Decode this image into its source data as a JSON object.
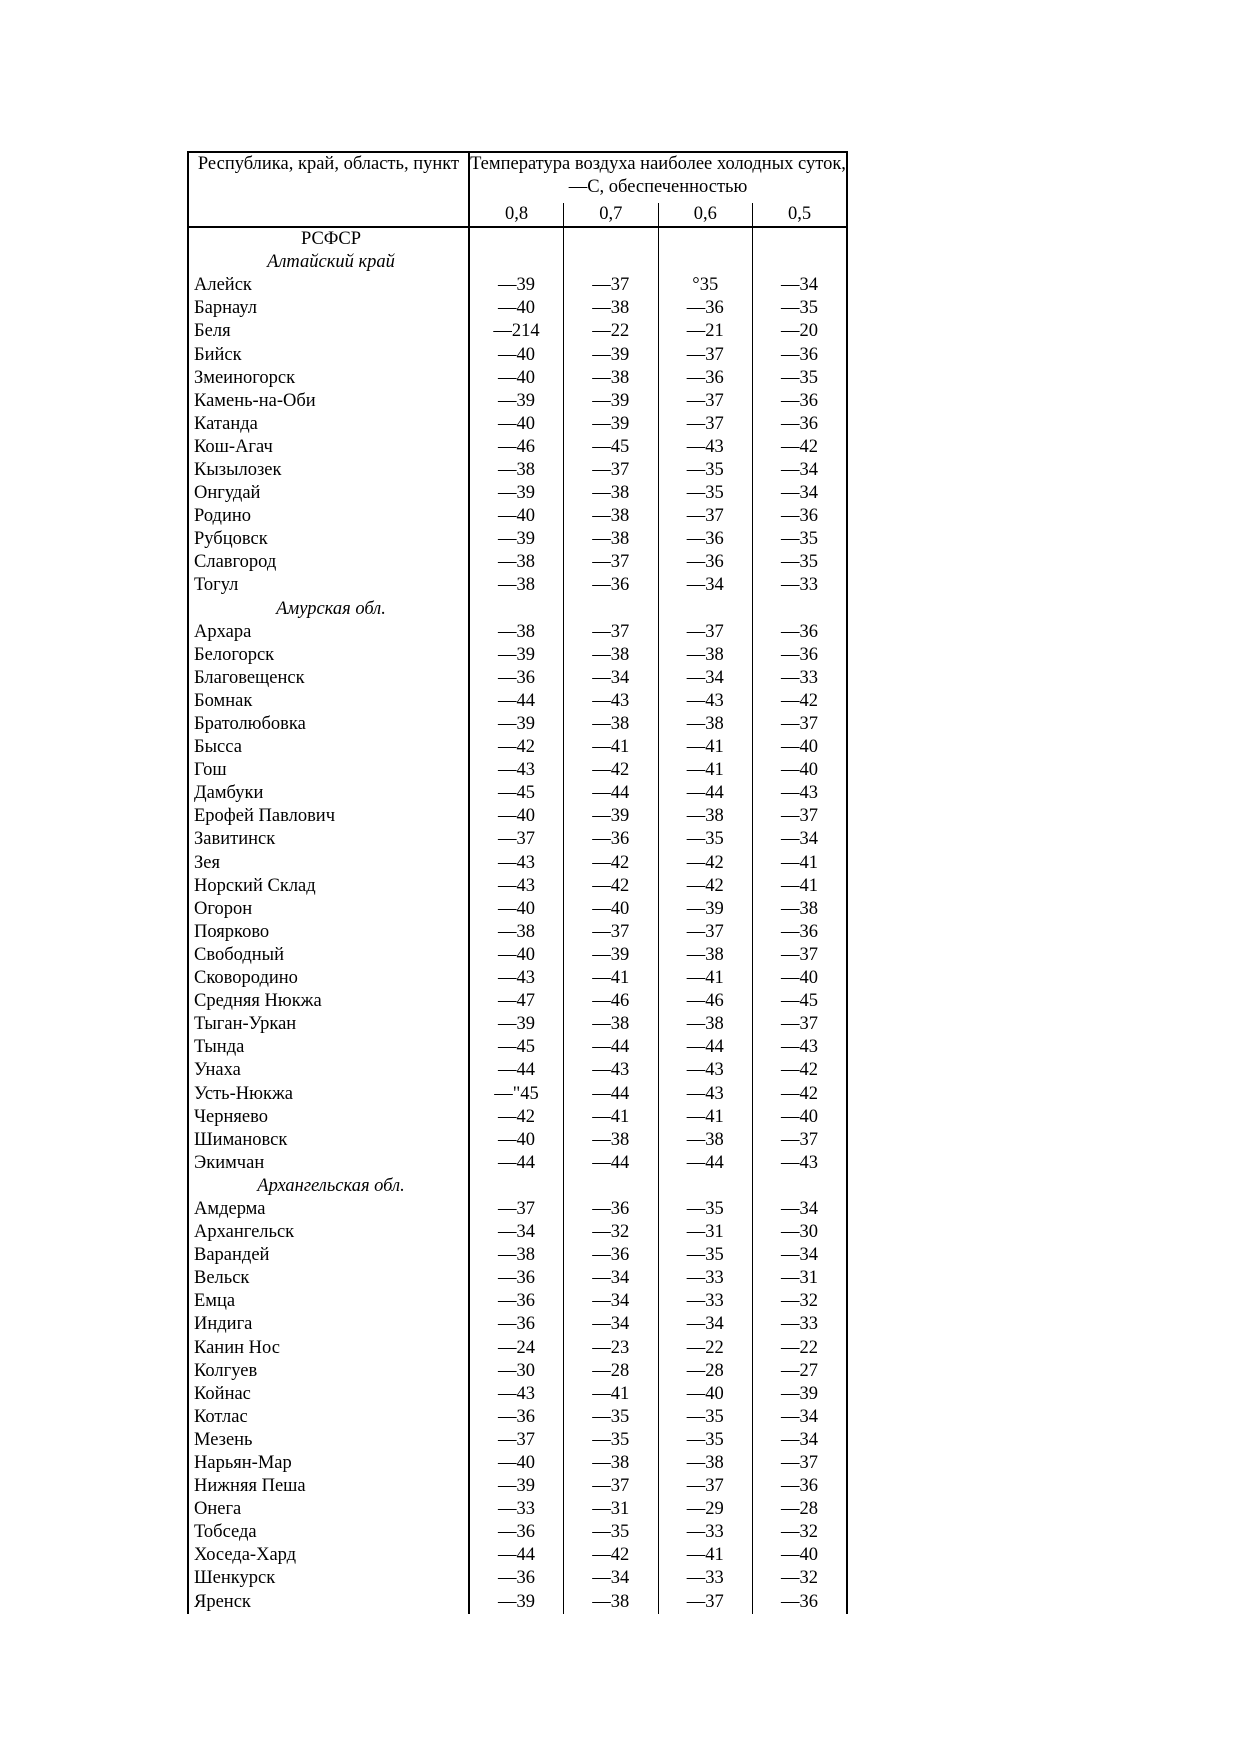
{
  "header": {
    "name_col": "Республика, край, область, пункт",
    "temp_col": "Температура воздуха наиболее холодных суток, —С, обеспеченностью",
    "probabilities": [
      "0,8",
      "0,7",
      "0,6",
      "0,5"
    ]
  },
  "country": "РСФСР",
  "groups": [
    {
      "title": "Алтайский край",
      "rows": [
        {
          "name": "Алейск",
          "v": [
            "—39",
            "—37",
            "°35",
            "—34"
          ]
        },
        {
          "name": "Барнаул",
          "v": [
            "—40",
            "—38",
            "—36",
            "—35"
          ]
        },
        {
          "name": "Беля",
          "v": [
            "—214",
            "—22",
            "—21",
            "—20"
          ]
        },
        {
          "name": "Бийск",
          "v": [
            "—40",
            "—39",
            "—37",
            "—36"
          ]
        },
        {
          "name": "Змеиногорск",
          "v": [
            "—40",
            "—38",
            "—36",
            "—35"
          ]
        },
        {
          "name": "Камень-на-Оби",
          "v": [
            "—39",
            "—39",
            "—37",
            "—36"
          ]
        },
        {
          "name": "Катанда",
          "v": [
            "—40",
            "—39",
            "—37",
            "—36"
          ]
        },
        {
          "name": "Кош-Агач",
          "v": [
            "—46",
            "—45",
            "—43",
            "—42"
          ]
        },
        {
          "name": "Кызылозек",
          "v": [
            "—38",
            "—37",
            "—35",
            "—34"
          ]
        },
        {
          "name": "Онгудай",
          "v": [
            "—39",
            "—38",
            "—35",
            "—34"
          ]
        },
        {
          "name": "Родино",
          "v": [
            "—40",
            "—38",
            "—37",
            "—36"
          ]
        },
        {
          "name": "Рубцовск",
          "v": [
            "—39",
            "—38",
            "—36",
            "—35"
          ]
        },
        {
          "name": "Славгород",
          "v": [
            "—38",
            "—37",
            "—36",
            "—35"
          ]
        },
        {
          "name": "Тогул",
          "v": [
            "—38",
            "—36",
            "—34",
            "—33"
          ]
        }
      ]
    },
    {
      "title": "Амурская обл.",
      "rows": [
        {
          "name": "Архара",
          "v": [
            "—38",
            "—37",
            "—37",
            "—36"
          ]
        },
        {
          "name": "Белогорск",
          "v": [
            "—39",
            "—38",
            "—38",
            "—36"
          ]
        },
        {
          "name": "Благовещенск",
          "v": [
            "—36",
            "—34",
            "—34",
            "—33"
          ]
        },
        {
          "name": "Бомнак",
          "v": [
            "—44",
            "—43",
            "—43",
            "—42"
          ]
        },
        {
          "name": "Братолюбовка",
          "v": [
            "—39",
            "—38",
            "—38",
            "—37"
          ]
        },
        {
          "name": "Бысса",
          "v": [
            "—42",
            "—41",
            "—41",
            "—40"
          ]
        },
        {
          "name": "Гош",
          "v": [
            "—43",
            "—42",
            "—41",
            "—40"
          ]
        },
        {
          "name": "Дамбуки",
          "v": [
            "—45",
            "—44",
            "—44",
            "—43"
          ]
        },
        {
          "name": "Ерофей Павлович",
          "v": [
            "—40",
            "—39",
            "—38",
            "—37"
          ]
        },
        {
          "name": "Завитинск",
          "v": [
            "—37",
            "—36",
            "—35",
            "—34"
          ]
        },
        {
          "name": "Зея",
          "v": [
            "—43",
            "—42",
            "—42",
            "—41"
          ]
        },
        {
          "name": "Норский Склад",
          "v": [
            "—43",
            "—42",
            "—42",
            "—41"
          ]
        },
        {
          "name": "Огорон",
          "v": [
            "—40",
            "—40",
            "—39",
            "—38"
          ]
        },
        {
          "name": "Поярково",
          "v": [
            "—38",
            "—37",
            "—37",
            "—36"
          ]
        },
        {
          "name": "Свободный",
          "v": [
            "—40",
            "—39",
            "—38",
            "—37"
          ]
        },
        {
          "name": "Сковородино",
          "v": [
            "—43",
            "—41",
            "—41",
            "—40"
          ]
        },
        {
          "name": "Средняя Нюкжа",
          "v": [
            "—47",
            "—46",
            "—46",
            "—45"
          ]
        },
        {
          "name": "Тыган-Уркан",
          "v": [
            "—39",
            "—38",
            "—38",
            "—37"
          ]
        },
        {
          "name": "Тында",
          "v": [
            "—45",
            "—44",
            "—44",
            "—43"
          ]
        },
        {
          "name": "Унаха",
          "v": [
            "—44",
            "—43",
            "—43",
            "—42"
          ]
        },
        {
          "name": "Усть-Нюкжа",
          "v": [
            "—\"45",
            "—44",
            "—43",
            "—42"
          ]
        },
        {
          "name": "Черняево",
          "v": [
            "—42",
            "—41",
            "—41",
            "—40"
          ]
        },
        {
          "name": "Шимановск",
          "v": [
            "—40",
            "—38",
            "—38",
            "—37"
          ]
        },
        {
          "name": "Экимчан",
          "v": [
            "—44",
            "—44",
            "—44",
            "—43"
          ]
        }
      ]
    },
    {
      "title": "Архангельская обл.",
      "rows": [
        {
          "name": "Амдерма",
          "v": [
            "—37",
            "—36",
            "—35",
            "—34"
          ]
        },
        {
          "name": "Архангельск",
          "v": [
            "—34",
            "—32",
            "—31",
            "—30"
          ]
        },
        {
          "name": "Варандей",
          "v": [
            "—38",
            "—36",
            "—35",
            "—34"
          ]
        },
        {
          "name": "Вельск",
          "v": [
            "—36",
            "—34",
            "—33",
            "—31"
          ]
        },
        {
          "name": "Емца",
          "v": [
            "—36",
            "—34",
            "—33",
            "—32"
          ]
        },
        {
          "name": "Индига",
          "v": [
            "—36",
            "—34",
            "—34",
            "—33"
          ]
        },
        {
          "name": "Канин Нос",
          "v": [
            "—24",
            "—23",
            "—22",
            "—22"
          ]
        },
        {
          "name": "Колгуев",
          "v": [
            "—30",
            "—28",
            "—28",
            "—27"
          ]
        },
        {
          "name": "Койнас",
          "v": [
            "—43",
            "—41",
            "—40",
            "—39"
          ]
        },
        {
          "name": "Котлас",
          "v": [
            "—36",
            "—35",
            "—35",
            "—34"
          ]
        },
        {
          "name": "Мезень",
          "v": [
            "—37",
            "—35",
            "—35",
            "—34"
          ]
        },
        {
          "name": "Нарьян-Мар",
          "v": [
            "—40",
            "—38",
            "—38",
            "—37"
          ]
        },
        {
          "name": "Нижняя Пеша",
          "v": [
            "—39",
            "—37",
            "—37",
            "—36"
          ]
        },
        {
          "name": "Онега",
          "v": [
            "—33",
            "—31",
            "—29",
            "—28"
          ]
        },
        {
          "name": "Тобседа",
          "v": [
            "—36",
            "—35",
            "—33",
            "—32"
          ]
        },
        {
          "name": "Хоседа-Хард",
          "v": [
            "—44",
            "—42",
            "—41",
            "—40"
          ]
        },
        {
          "name": "Шенкурск",
          "v": [
            "—36",
            "—34",
            "—33",
            "—32"
          ]
        },
        {
          "name": "Яренск",
          "v": [
            "—39",
            "—38",
            "—37",
            "—36"
          ]
        }
      ]
    }
  ]
}
